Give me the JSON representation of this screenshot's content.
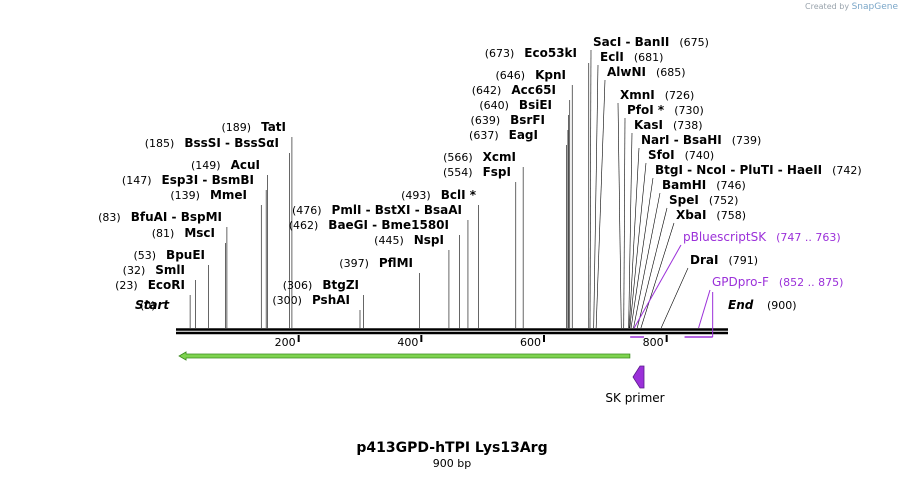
{
  "brand": {
    "prefix": "Created by",
    "name": "SnapGene"
  },
  "title": "p413GPD-hTPI Lys13Arg",
  "subtitle": "900 bp",
  "sequence_length": 900,
  "ruler": {
    "ticks": [
      200,
      400,
      600,
      800
    ]
  },
  "start_label": {
    "pos": "(0)",
    "text": "Start"
  },
  "end_label": {
    "text": "End",
    "pos": "(900)"
  },
  "sites_left": [
    {
      "pos": 0,
      "pos_label": "(0)",
      "names": []
    },
    {
      "pos": 23,
      "pos_label": "(23)",
      "names": [
        "EcoRI"
      ]
    },
    {
      "pos": 32,
      "pos_label": "(32)",
      "names": [
        "SmlI"
      ]
    },
    {
      "pos": 53,
      "pos_label": "(53)",
      "names": [
        "BpuEI"
      ]
    },
    {
      "pos": 81,
      "pos_label": "(81)",
      "names": [
        "MscI"
      ]
    },
    {
      "pos": 83,
      "pos_label": "(83)",
      "names": [
        "BfuAI",
        "BspMI"
      ]
    },
    {
      "pos": 139,
      "pos_label": "(139)",
      "names": [
        "MmeI"
      ]
    },
    {
      "pos": 147,
      "pos_label": "(147)",
      "names": [
        "Esp3I",
        "BsmBI"
      ]
    },
    {
      "pos": 149,
      "pos_label": "(149)",
      "names": [
        "AcuI"
      ]
    },
    {
      "pos": 185,
      "pos_label": "(185)",
      "names": [
        "BssSI",
        "BssSαI"
      ]
    },
    {
      "pos": 189,
      "pos_label": "(189)",
      "names": [
        "TatI"
      ]
    },
    {
      "pos": 300,
      "pos_label": "(300)",
      "names": [
        "PshAI"
      ]
    },
    {
      "pos": 306,
      "pos_label": "(306)",
      "names": [
        "BtgZI"
      ]
    },
    {
      "pos": 397,
      "pos_label": "(397)",
      "names": [
        "PflMI"
      ]
    },
    {
      "pos": 445,
      "pos_label": "(445)",
      "names": [
        "NspI"
      ]
    },
    {
      "pos": 462,
      "pos_label": "(462)",
      "names": [
        "BaeGI",
        "Bme1580I"
      ]
    },
    {
      "pos": 476,
      "pos_label": "(476)",
      "names": [
        "PmlI",
        "BstXI",
        "BsaAI"
      ]
    },
    {
      "pos": 493,
      "pos_label": "(493)",
      "names": [
        "BclI *"
      ]
    },
    {
      "pos": 554,
      "pos_label": "(554)",
      "names": [
        "FspI"
      ]
    },
    {
      "pos": 566,
      "pos_label": "(566)",
      "names": [
        "XcmI"
      ]
    },
    {
      "pos": 637,
      "pos_label": "(637)",
      "names": [
        "EagI"
      ]
    },
    {
      "pos": 639,
      "pos_label": "(639)",
      "names": [
        "BsrFI"
      ]
    },
    {
      "pos": 640,
      "pos_label": "(640)",
      "names": [
        "BsiEI"
      ]
    },
    {
      "pos": 642,
      "pos_label": "(642)",
      "names": [
        "Acc65I"
      ]
    },
    {
      "pos": 646,
      "pos_label": "(646)",
      "names": [
        "KpnI"
      ]
    },
    {
      "pos": 673,
      "pos_label": "(673)",
      "names": [
        "Eco53kI"
      ]
    }
  ],
  "sites_right": [
    {
      "pos": 675,
      "pos_label": "(675)",
      "names": [
        "SacI",
        "BanII"
      ]
    },
    {
      "pos": 681,
      "pos_label": "(681)",
      "names": [
        "EclI"
      ]
    },
    {
      "pos": 685,
      "pos_label": "(685)",
      "names": [
        "AlwNI"
      ]
    },
    {
      "pos": 726,
      "pos_label": "(726)",
      "names": [
        "XmnI"
      ]
    },
    {
      "pos": 730,
      "pos_label": "(730)",
      "names": [
        "PfoI *"
      ]
    },
    {
      "pos": 738,
      "pos_label": "(738)",
      "names": [
        "KasI"
      ]
    },
    {
      "pos": 739,
      "pos_label": "(739)",
      "names": [
        "NarI",
        "BsaHI"
      ]
    },
    {
      "pos": 740,
      "pos_label": "(740)",
      "names": [
        "SfoI"
      ]
    },
    {
      "pos": 742,
      "pos_label": "(742)",
      "names": [
        "BtgI",
        "NcoI",
        "PluTI",
        "HaeII"
      ]
    },
    {
      "pos": 746,
      "pos_label": "(746)",
      "names": [
        "BamHI"
      ]
    },
    {
      "pos": 752,
      "pos_label": "(752)",
      "names": [
        "SpeI"
      ]
    },
    {
      "pos": 758,
      "pos_label": "(758)",
      "names": [
        "XbaI"
      ]
    },
    {
      "pos": 791,
      "pos_label": "(791)",
      "names": [
        "DraI"
      ]
    }
  ],
  "primers": [
    {
      "name": "pBluescriptSK",
      "range": "(747 .. 763)",
      "start": 747,
      "end": 763,
      "color": "#9b30d9"
    },
    {
      "name": "GPDpro-F",
      "range": "(852 .. 875)",
      "start": 852,
      "end": 875,
      "color": "#9b30d9"
    }
  ],
  "feature": {
    "start": 5,
    "end": 740,
    "direction": "left",
    "color": "#7ed34f",
    "border": "#3b8a1e"
  },
  "sk_primer": {
    "label": "SK primer",
    "pos": 754,
    "color": "#9b30d9"
  }
}
